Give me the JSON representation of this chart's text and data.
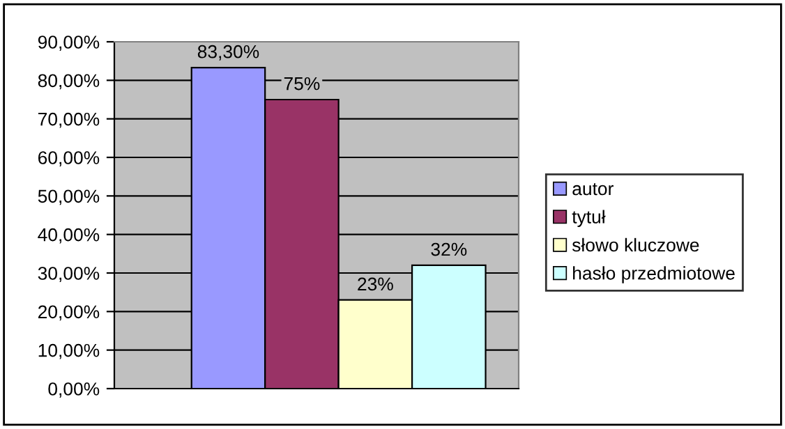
{
  "chart_data": {
    "type": "bar",
    "categories": [
      null
    ],
    "series": [
      {
        "name": "autor",
        "color": "#9999ff",
        "values": [
          83.3
        ],
        "value_labels": [
          "83,30%"
        ]
      },
      {
        "name": "tytuł",
        "color": "#993366",
        "values": [
          75
        ],
        "value_labels": [
          "75%"
        ]
      },
      {
        "name": "słowo kluczowe",
        "color": "#ffffcc",
        "values": [
          23
        ],
        "value_labels": [
          "23%"
        ]
      },
      {
        "name": "hasło przedmiotowe",
        "color": "#ccffff",
        "values": [
          32
        ],
        "value_labels": [
          "32%"
        ]
      }
    ],
    "ylim": [
      0,
      90
    ],
    "yticks": [
      {
        "value": 0,
        "label": "0,00%"
      },
      {
        "value": 10,
        "label": "10,00%"
      },
      {
        "value": 20,
        "label": "20,00%"
      },
      {
        "value": 30,
        "label": "30,00%"
      },
      {
        "value": 40,
        "label": "40,00%"
      },
      {
        "value": 50,
        "label": "50,00%"
      },
      {
        "value": 60,
        "label": "60,00%"
      },
      {
        "value": 70,
        "label": "70,00%"
      },
      {
        "value": 80,
        "label": "80,00%"
      },
      {
        "value": 90,
        "label": "90,00%"
      }
    ],
    "grid": "y",
    "legend": "right"
  }
}
